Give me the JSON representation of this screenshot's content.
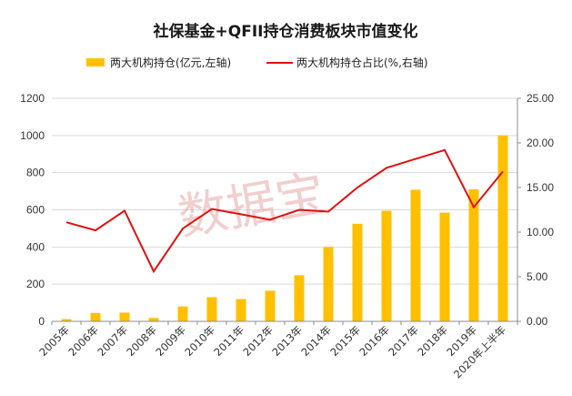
{
  "chart_data": {
    "type": "bar",
    "title": "社保基金+QFII持仓消费板块市值变化",
    "watermark": "数据宝",
    "categories": [
      "2005年",
      "2006年",
      "2007年",
      "2008年",
      "2009年",
      "2010年",
      "2011年",
      "2012年",
      "2013年",
      "2014年",
      "2015年",
      "2016年",
      "2017年",
      "2018年",
      "2019年",
      "2020年上半年"
    ],
    "series": [
      {
        "name": "两大机构持仓(亿元,左轴)",
        "type": "bar",
        "axis": "left",
        "color": "#FFC000",
        "values": [
          12,
          45,
          47,
          18,
          80,
          130,
          120,
          165,
          248,
          400,
          525,
          595,
          708,
          585,
          710,
          1000
        ]
      },
      {
        "name": "两大机构持仓占比(%,右轴)",
        "type": "line",
        "axis": "right",
        "color": "#E01010",
        "values": [
          11.1,
          10.2,
          12.4,
          5.6,
          10.4,
          12.6,
          12.0,
          11.4,
          12.5,
          12.3,
          15.0,
          17.2,
          18.2,
          19.2,
          12.8,
          16.8
        ]
      }
    ],
    "y_left": {
      "min": 0,
      "max": 1200,
      "step": 200,
      "ticks": [
        "0",
        "200",
        "400",
        "600",
        "800",
        "1000",
        "1200"
      ]
    },
    "y_right": {
      "min": 0,
      "max": 25,
      "step": 5,
      "ticks": [
        "0.00",
        "5.00",
        "10.00",
        "15.00",
        "20.00",
        "25.00"
      ]
    },
    "grid": "horizontal",
    "legend_position": "top"
  }
}
